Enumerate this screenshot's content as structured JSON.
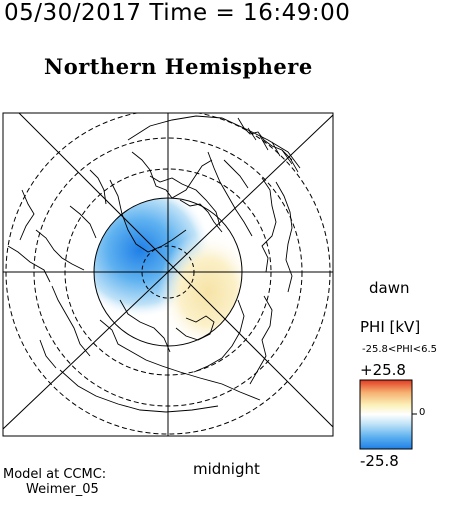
{
  "header": {
    "date_time": "05/30/2017 Time = 16:49:00"
  },
  "title": "Northern Hemisphere",
  "labels": {
    "dawn": "dawn",
    "midnight": "midnight"
  },
  "colorbar": {
    "quantity": "PHI [kV]",
    "range_text": "-25.8<PHI<6.5",
    "max_label": "+25.8",
    "min_label": "-25.8",
    "zero_label": "0",
    "colors": [
      "#1f7fe6",
      "#5fb2f0",
      "#bfe2f7",
      "#ffffff",
      "#fbf0b8",
      "#f6b070",
      "#e23a22"
    ]
  },
  "credit": {
    "line1": "Model at CCMC:",
    "line2": "Weimer_05"
  },
  "chart_data": {
    "type": "polar-map",
    "title": "Northern Hemisphere",
    "projection": "north polar",
    "quantity": "PHI",
    "units": "kV",
    "phi_min": -25.8,
    "phi_max": 6.5,
    "colorbar_range": [
      -25.8,
      25.8
    ],
    "potential_cells": [
      {
        "sign": "negative",
        "peak_kV": -25.8,
        "location": "upper-left of pole"
      },
      {
        "sign": "positive",
        "peak_kV": 6.5,
        "location": "lower-right of pole"
      }
    ],
    "orientation": {
      "right": "dawn",
      "bottom": "midnight"
    },
    "grid": true
  }
}
